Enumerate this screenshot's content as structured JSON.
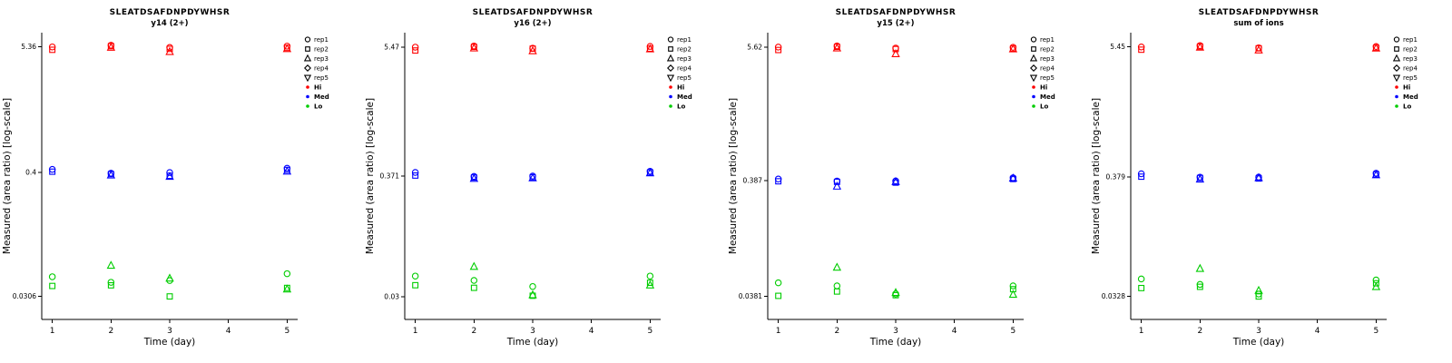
{
  "legend": {
    "reps": [
      {
        "label": "rep1",
        "symbol": "circle"
      },
      {
        "label": "rep2",
        "symbol": "square"
      },
      {
        "label": "rep3",
        "symbol": "triangle-up"
      },
      {
        "label": "rep4",
        "symbol": "diamond"
      },
      {
        "label": "rep5",
        "symbol": "triangle-down"
      }
    ],
    "levels": [
      {
        "label": "Hi",
        "color": "#FF0000"
      },
      {
        "label": "Med",
        "color": "#0000FF"
      },
      {
        "label": "Lo",
        "color": "#00CD00"
      }
    ]
  },
  "chart_data": [
    {
      "type": "scatter",
      "title": "SLEATDSAFDNPDYWHSR",
      "subtitle": "y14 (2+)",
      "xlabel": "Time (day)",
      "ylabel": "Measured (area ratio) [log-scale]",
      "x_ticks": [
        1,
        2,
        3,
        4,
        5
      ],
      "y_ticks": [
        5.36,
        0.4,
        0.0306
      ],
      "xlim": [
        0.82,
        5.18
      ],
      "ylim": [
        0.019,
        7.2
      ],
      "y_scale": "log",
      "point_format": "[day, rep, value]",
      "series": [
        {
          "name": "Hi",
          "color": "#FF0000",
          "points": [
            [
              1,
              1,
              5.36
            ],
            [
              1,
              2,
              5.05
            ],
            [
              2,
              1,
              5.55
            ],
            [
              2,
              2,
              5.45
            ],
            [
              2,
              3,
              5.3
            ],
            [
              3,
              1,
              5.3
            ],
            [
              3,
              2,
              5.15
            ],
            [
              3,
              3,
              4.85
            ],
            [
              5,
              1,
              5.45
            ],
            [
              5,
              2,
              5.25
            ],
            [
              5,
              3,
              5.15
            ]
          ]
        },
        {
          "name": "Med",
          "color": "#0000FF",
          "points": [
            [
              1,
              1,
              0.425
            ],
            [
              1,
              2,
              0.405
            ],
            [
              2,
              1,
              0.392
            ],
            [
              2,
              2,
              0.385
            ],
            [
              2,
              3,
              0.376
            ],
            [
              3,
              1,
              0.398
            ],
            [
              3,
              2,
              0.372
            ],
            [
              3,
              3,
              0.366
            ],
            [
              5,
              1,
              0.435
            ],
            [
              5,
              2,
              0.42
            ],
            [
              5,
              3,
              0.408
            ]
          ]
        },
        {
          "name": "Lo",
          "color": "#00CD00",
          "points": [
            [
              1,
              1,
              0.046
            ],
            [
              1,
              2,
              0.038
            ],
            [
              2,
              1,
              0.041
            ],
            [
              2,
              2,
              0.0385
            ],
            [
              2,
              3,
              0.058
            ],
            [
              3,
              1,
              0.0425
            ],
            [
              3,
              2,
              0.0306
            ],
            [
              3,
              3,
              0.0445
            ],
            [
              5,
              1,
              0.049
            ],
            [
              5,
              2,
              0.0365
            ],
            [
              5,
              3,
              0.0355
            ]
          ]
        }
      ]
    },
    {
      "type": "scatter",
      "title": "SLEATDSAFDNPDYWHSR",
      "subtitle": "y16 (2+)",
      "xlabel": "Time (day)",
      "ylabel": "Measured (area ratio) [log-scale]",
      "x_ticks": [
        1,
        2,
        3,
        4,
        5
      ],
      "y_ticks": [
        5.47,
        0.371,
        0.03
      ],
      "xlim": [
        0.82,
        5.18
      ],
      "ylim": [
        0.0186,
        7.4
      ],
      "y_scale": "log",
      "point_format": "[day, rep, value]",
      "series": [
        {
          "name": "Hi",
          "color": "#FF0000",
          "points": [
            [
              1,
              1,
              5.47
            ],
            [
              1,
              2,
              5.1
            ],
            [
              2,
              1,
              5.6
            ],
            [
              2,
              2,
              5.5
            ],
            [
              2,
              3,
              5.35
            ],
            [
              3,
              1,
              5.35
            ],
            [
              3,
              2,
              5.3
            ],
            [
              3,
              3,
              5.05
            ],
            [
              5,
              1,
              5.55
            ],
            [
              5,
              2,
              5.3
            ],
            [
              5,
              3,
              5.25
            ]
          ]
        },
        {
          "name": "Med",
          "color": "#0000FF",
          "points": [
            [
              1,
              1,
              0.4
            ],
            [
              1,
              2,
              0.375
            ],
            [
              2,
              1,
              0.368
            ],
            [
              2,
              2,
              0.36
            ],
            [
              2,
              3,
              0.352
            ],
            [
              3,
              1,
              0.371
            ],
            [
              3,
              2,
              0.362
            ],
            [
              3,
              3,
              0.356
            ],
            [
              5,
              1,
              0.41
            ],
            [
              5,
              2,
              0.4
            ],
            [
              5,
              3,
              0.395
            ]
          ]
        },
        {
          "name": "Lo",
          "color": "#00CD00",
          "points": [
            [
              1,
              1,
              0.046
            ],
            [
              1,
              2,
              0.038
            ],
            [
              2,
              1,
              0.042
            ],
            [
              2,
              2,
              0.036
            ],
            [
              2,
              3,
              0.056
            ],
            [
              3,
              1,
              0.037
            ],
            [
              3,
              2,
              0.0305
            ],
            [
              3,
              3,
              0.031
            ],
            [
              5,
              1,
              0.046
            ],
            [
              5,
              2,
              0.04
            ],
            [
              5,
              3,
              0.038
            ]
          ]
        }
      ]
    },
    {
      "type": "scatter",
      "title": "SLEATDSAFDNPDYWHSR",
      "subtitle": "y15 (2+)",
      "xlabel": "Time (day)",
      "ylabel": "Measured (area ratio) [log-scale]",
      "x_ticks": [
        1,
        2,
        3,
        4,
        5
      ],
      "y_ticks": [
        5.62,
        0.387,
        0.0381
      ],
      "xlim": [
        0.82,
        5.18
      ],
      "ylim": [
        0.024,
        7.5
      ],
      "y_scale": "log",
      "point_format": "[day, rep, value]",
      "series": [
        {
          "name": "Hi",
          "color": "#FF0000",
          "points": [
            [
              1,
              1,
              5.62
            ],
            [
              1,
              2,
              5.3
            ],
            [
              2,
              1,
              5.75
            ],
            [
              2,
              2,
              5.65
            ],
            [
              2,
              3,
              5.5
            ],
            [
              3,
              1,
              5.5
            ],
            [
              3,
              2,
              5.4
            ],
            [
              3,
              3,
              4.9
            ],
            [
              5,
              1,
              5.6
            ],
            [
              5,
              2,
              5.45
            ],
            [
              5,
              3,
              5.4
            ]
          ]
        },
        {
          "name": "Med",
          "color": "#0000FF",
          "points": [
            [
              1,
              1,
              0.4
            ],
            [
              1,
              2,
              0.382
            ],
            [
              2,
              1,
              0.384
            ],
            [
              2,
              2,
              0.378
            ],
            [
              2,
              3,
              0.345
            ],
            [
              3,
              1,
              0.385
            ],
            [
              3,
              2,
              0.372
            ],
            [
              3,
              3,
              0.378
            ],
            [
              5,
              1,
              0.41
            ],
            [
              5,
              2,
              0.4
            ],
            [
              5,
              3,
              0.405
            ]
          ]
        },
        {
          "name": "Lo",
          "color": "#00CD00",
          "points": [
            [
              1,
              1,
              0.05
            ],
            [
              1,
              2,
              0.0385
            ],
            [
              2,
              1,
              0.047
            ],
            [
              2,
              2,
              0.042
            ],
            [
              2,
              3,
              0.068
            ],
            [
              3,
              1,
              0.04
            ],
            [
              3,
              2,
              0.039
            ],
            [
              3,
              3,
              0.041
            ],
            [
              5,
              1,
              0.047
            ],
            [
              5,
              2,
              0.044
            ],
            [
              5,
              3,
              0.0395
            ]
          ]
        }
      ]
    },
    {
      "type": "scatter",
      "title": "SLEATDSAFDNPDYWHSR",
      "subtitle": "sum of ions",
      "xlabel": "Time (day)",
      "ylabel": "Measured (area ratio) [log-scale]",
      "x_ticks": [
        1,
        2,
        3,
        4,
        5
      ],
      "y_ticks": [
        5.45,
        0.379,
        0.0328
      ],
      "xlim": [
        0.82,
        5.18
      ],
      "ylim": [
        0.0205,
        7.3
      ],
      "y_scale": "log",
      "point_format": "[day, rep, value]",
      "series": [
        {
          "name": "Hi",
          "color": "#FF0000",
          "points": [
            [
              1,
              1,
              5.45
            ],
            [
              1,
              2,
              5.15
            ],
            [
              2,
              1,
              5.6
            ],
            [
              2,
              2,
              5.5
            ],
            [
              2,
              3,
              5.4
            ],
            [
              3,
              1,
              5.35
            ],
            [
              3,
              2,
              5.3
            ],
            [
              3,
              3,
              5.1
            ],
            [
              5,
              1,
              5.5
            ],
            [
              5,
              2,
              5.35
            ],
            [
              5,
              3,
              5.3
            ]
          ]
        },
        {
          "name": "Med",
          "color": "#0000FF",
          "points": [
            [
              1,
              1,
              0.405
            ],
            [
              1,
              2,
              0.382
            ],
            [
              2,
              1,
              0.378
            ],
            [
              2,
              2,
              0.372
            ],
            [
              2,
              3,
              0.362
            ],
            [
              3,
              1,
              0.379
            ],
            [
              3,
              2,
              0.368
            ],
            [
              3,
              3,
              0.372
            ],
            [
              5,
              1,
              0.41
            ],
            [
              5,
              2,
              0.4
            ],
            [
              5,
              3,
              0.395
            ]
          ]
        },
        {
          "name": "Lo",
          "color": "#00CD00",
          "points": [
            [
              1,
              1,
              0.047
            ],
            [
              1,
              2,
              0.039
            ],
            [
              2,
              1,
              0.042
            ],
            [
              2,
              2,
              0.04
            ],
            [
              2,
              3,
              0.058
            ],
            [
              3,
              1,
              0.0345
            ],
            [
              3,
              2,
              0.0328
            ],
            [
              3,
              3,
              0.037
            ],
            [
              5,
              1,
              0.046
            ],
            [
              5,
              2,
              0.043
            ],
            [
              5,
              3,
              0.04
            ]
          ]
        }
      ]
    }
  ]
}
